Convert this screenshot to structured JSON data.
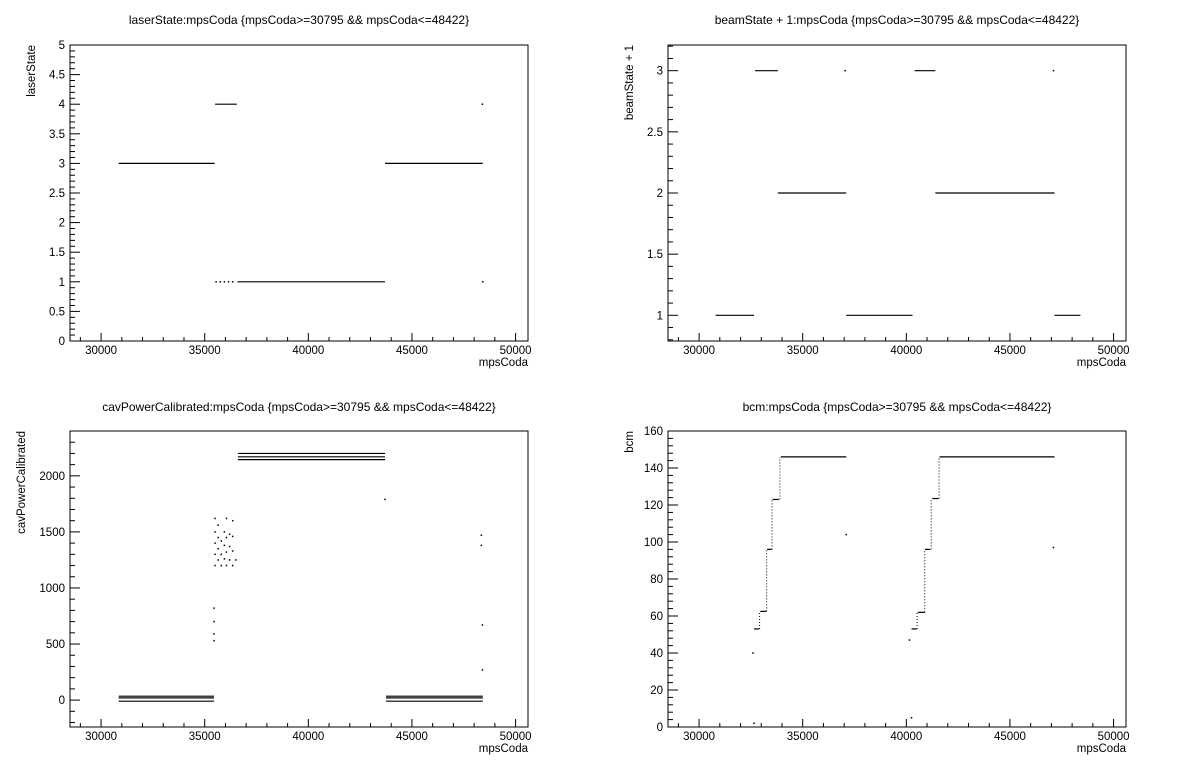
{
  "chart_data": [
    {
      "type": "scatter",
      "title": "laserState:mpsCoda {mpsCoda>=30795 && mpsCoda<=48422}",
      "xlabel": "mpsCoda",
      "ylabel": "laserState",
      "xlim": [
        28500,
        50600
      ],
      "ylim": [
        0,
        5
      ],
      "xticks": [
        30000,
        35000,
        40000,
        45000,
        50000
      ],
      "yticks": [
        0,
        0.5,
        1,
        1.5,
        2,
        2.5,
        3,
        3.5,
        4,
        4.5,
        5
      ],
      "ytick_labels": [
        "0",
        "0.5",
        "1",
        "1.5",
        "2",
        "2.5",
        "3",
        "3.5",
        "4",
        "4.5",
        "5"
      ],
      "grid": false,
      "segments": [
        {
          "x": [
            30850,
            35480
          ],
          "y": 3
        },
        {
          "x": [
            35500,
            36550
          ],
          "y": 4
        },
        {
          "x": [
            36580,
            43700
          ],
          "y": 1
        },
        {
          "x": [
            43700,
            48420
          ],
          "y": 3
        }
      ],
      "points": [
        {
          "x": 35550,
          "y": 1
        },
        {
          "x": 35750,
          "y": 1
        },
        {
          "x": 35950,
          "y": 1
        },
        {
          "x": 36150,
          "y": 1
        },
        {
          "x": 36350,
          "y": 1
        },
        {
          "x": 48400,
          "y": 4
        },
        {
          "x": 48420,
          "y": 1
        }
      ]
    },
    {
      "type": "scatter",
      "title": "beamState + 1:mpsCoda {mpsCoda>=30795 && mpsCoda<=48422}",
      "xlabel": "mpsCoda",
      "ylabel": "beamState + 1",
      "xlim": [
        28500,
        50600
      ],
      "ylim": [
        0.79,
        3.21
      ],
      "xticks": [
        30000,
        35000,
        40000,
        45000,
        50000
      ],
      "yticks": [
        1,
        1.5,
        2,
        2.5,
        3
      ],
      "ytick_labels": [
        "1",
        "1.5",
        "2",
        "2.5",
        "3"
      ],
      "grid": false,
      "segments": [
        {
          "x": [
            30800,
            32650
          ],
          "y": 1
        },
        {
          "x": [
            32700,
            33800
          ],
          "y": 3
        },
        {
          "x": [
            33800,
            37100
          ],
          "y": 2
        },
        {
          "x": [
            37100,
            40300
          ],
          "y": 1
        },
        {
          "x": [
            40400,
            41400
          ],
          "y": 3
        },
        {
          "x": [
            41400,
            47150
          ],
          "y": 2
        },
        {
          "x": [
            47150,
            48400
          ],
          "y": 1
        }
      ],
      "points": [
        {
          "x": 37050,
          "y": 3
        },
        {
          "x": 47100,
          "y": 3
        }
      ]
    },
    {
      "type": "scatter",
      "title": "cavPowerCalibrated:mpsCoda {mpsCoda>=30795 && mpsCoda<=48422}",
      "xlabel": "mpsCoda",
      "ylabel": "cavPowerCalibrated",
      "xlim": [
        28500,
        50600
      ],
      "ylim": [
        -240,
        2400
      ],
      "xticks": [
        30000,
        35000,
        40000,
        45000,
        50000
      ],
      "yticks": [
        0,
        500,
        1000,
        1500,
        2000
      ],
      "ytick_labels": [
        "0",
        "500",
        "1000",
        "1500",
        "2000"
      ],
      "grid": false,
      "segments": [
        {
          "x": [
            30850,
            35450
          ],
          "y": 35
        },
        {
          "x": [
            30850,
            35450
          ],
          "y": 20
        },
        {
          "x": [
            30850,
            35450
          ],
          "y": -10
        },
        {
          "x": [
            36600,
            43700
          ],
          "y": 2200
        },
        {
          "x": [
            36600,
            43700
          ],
          "y": 2170
        },
        {
          "x": [
            36600,
            43700
          ],
          "y": 2145
        },
        {
          "x": [
            43750,
            48420
          ],
          "y": 35
        },
        {
          "x": [
            43750,
            48420
          ],
          "y": 20
        },
        {
          "x": [
            43750,
            48420
          ],
          "y": -10
        }
      ],
      "points": [
        {
          "x": 35500,
          "y": 1200
        },
        {
          "x": 35500,
          "y": 1300
        },
        {
          "x": 35500,
          "y": 1400
        },
        {
          "x": 35500,
          "y": 1500
        },
        {
          "x": 35500,
          "y": 1620
        },
        {
          "x": 35650,
          "y": 1250
        },
        {
          "x": 35650,
          "y": 1350
        },
        {
          "x": 35650,
          "y": 1450
        },
        {
          "x": 35650,
          "y": 1560
        },
        {
          "x": 35800,
          "y": 1200
        },
        {
          "x": 35800,
          "y": 1300
        },
        {
          "x": 35800,
          "y": 1420
        },
        {
          "x": 35950,
          "y": 1260
        },
        {
          "x": 35950,
          "y": 1380
        },
        {
          "x": 35950,
          "y": 1500
        },
        {
          "x": 36050,
          "y": 1200
        },
        {
          "x": 36050,
          "y": 1320
        },
        {
          "x": 36050,
          "y": 1450
        },
        {
          "x": 36050,
          "y": 1620
        },
        {
          "x": 36200,
          "y": 1250
        },
        {
          "x": 36200,
          "y": 1370
        },
        {
          "x": 36200,
          "y": 1480
        },
        {
          "x": 36350,
          "y": 1200
        },
        {
          "x": 36350,
          "y": 1330
        },
        {
          "x": 36350,
          "y": 1460
        },
        {
          "x": 36350,
          "y": 1600
        },
        {
          "x": 36500,
          "y": 1250
        },
        {
          "x": 35450,
          "y": 820
        },
        {
          "x": 35450,
          "y": 700
        },
        {
          "x": 35450,
          "y": 590
        },
        {
          "x": 35450,
          "y": 530
        },
        {
          "x": 43700,
          "y": 1790
        },
        {
          "x": 48350,
          "y": 1470
        },
        {
          "x": 48350,
          "y": 1380
        },
        {
          "x": 48400,
          "y": 670
        },
        {
          "x": 48400,
          "y": 270
        }
      ]
    },
    {
      "type": "scatter",
      "title": "bcm:mpsCoda {mpsCoda>=30795 && mpsCoda<=48422}",
      "xlabel": "mpsCoda",
      "ylabel": "bcm",
      "xlim": [
        28500,
        50600
      ],
      "ylim": [
        0,
        160
      ],
      "xticks": [
        30000,
        35000,
        40000,
        45000,
        50000
      ],
      "yticks": [
        0,
        20,
        40,
        60,
        80,
        100,
        120,
        140,
        160
      ],
      "ytick_labels": [
        "0",
        "20",
        "40",
        "60",
        "80",
        "100",
        "120",
        "140",
        "160"
      ],
      "grid": false,
      "segments": [
        {
          "x": [
            32650,
            32900
          ],
          "y": 53
        },
        {
          "x": [
            32950,
            33250
          ],
          "y": 62.5
        },
        {
          "x": [
            33280,
            33500
          ],
          "y": 96
        },
        {
          "x": [
            33550,
            33850
          ],
          "y": 123
        },
        {
          "x": [
            33950,
            37100
          ],
          "y": 146
        },
        {
          "x": [
            40250,
            40500
          ],
          "y": 53
        },
        {
          "x": [
            40550,
            40900
          ],
          "y": 62
        },
        {
          "x": [
            40900,
            41150
          ],
          "y": 96
        },
        {
          "x": [
            41250,
            41550
          ],
          "y": 123.5
        },
        {
          "x": [
            41600,
            47150
          ],
          "y": 146
        }
      ],
      "risers": [
        {
          "x": 32920,
          "y": [
            53,
            62.5
          ]
        },
        {
          "x": 33260,
          "y": [
            62.5,
            96
          ]
        },
        {
          "x": 33520,
          "y": [
            96,
            123
          ]
        },
        {
          "x": 33900,
          "y": [
            123,
            146
          ]
        },
        {
          "x": 40520,
          "y": [
            53,
            62
          ]
        },
        {
          "x": 40890,
          "y": [
            62,
            96
          ]
        },
        {
          "x": 41200,
          "y": [
            96,
            123.5
          ]
        },
        {
          "x": 41580,
          "y": [
            123.5,
            146
          ]
        }
      ],
      "points": [
        {
          "x": 32600,
          "y": 40
        },
        {
          "x": 32650,
          "y": 2
        },
        {
          "x": 37100,
          "y": 104
        },
        {
          "x": 40150,
          "y": 47
        },
        {
          "x": 40250,
          "y": 5
        },
        {
          "x": 47100,
          "y": 97
        }
      ]
    }
  ]
}
